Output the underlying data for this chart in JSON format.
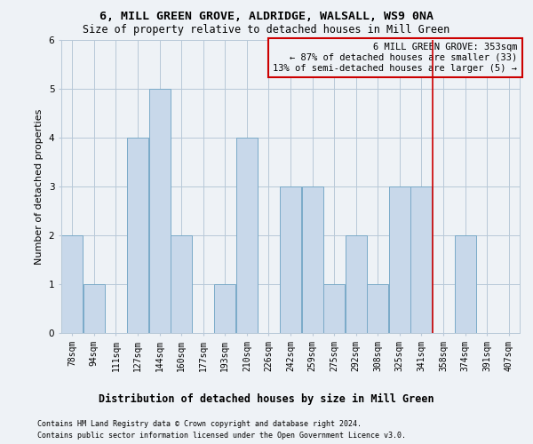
{
  "title": "6, MILL GREEN GROVE, ALDRIDGE, WALSALL, WS9 0NA",
  "subtitle": "Size of property relative to detached houses in Mill Green",
  "xlabel_bottom": "Distribution of detached houses by size in Mill Green",
  "ylabel": "Number of detached properties",
  "categories": [
    "78sqm",
    "94sqm",
    "111sqm",
    "127sqm",
    "144sqm",
    "160sqm",
    "177sqm",
    "193sqm",
    "210sqm",
    "226sqm",
    "242sqm",
    "259sqm",
    "275sqm",
    "292sqm",
    "308sqm",
    "325sqm",
    "341sqm",
    "358sqm",
    "374sqm",
    "391sqm",
    "407sqm"
  ],
  "values": [
    2,
    1,
    0,
    4,
    5,
    2,
    0,
    1,
    4,
    0,
    3,
    3,
    1,
    2,
    1,
    3,
    3,
    0,
    2,
    0,
    0
  ],
  "bar_color": "#c8d8ea",
  "bar_edge_color": "#7aaac8",
  "grid_color": "#b8c8d8",
  "background_color": "#eef2f6",
  "red_line_x": 16.5,
  "annotation_title": "6 MILL GREEN GROVE: 353sqm",
  "annotation_line1": "← 87% of detached houses are smaller (33)",
  "annotation_line2": "13% of semi-detached houses are larger (5) →",
  "annotation_box_color": "#cc0000",
  "footer1": "Contains HM Land Registry data © Crown copyright and database right 2024.",
  "footer2": "Contains public sector information licensed under the Open Government Licence v3.0.",
  "ylim": [
    0,
    6
  ],
  "title_fontsize": 9.5,
  "subtitle_fontsize": 8.5,
  "ylabel_fontsize": 8,
  "tick_fontsize": 7,
  "annotation_fontsize": 7.5,
  "footer_fontsize": 6,
  "xlabel_bottom_fontsize": 8.5
}
